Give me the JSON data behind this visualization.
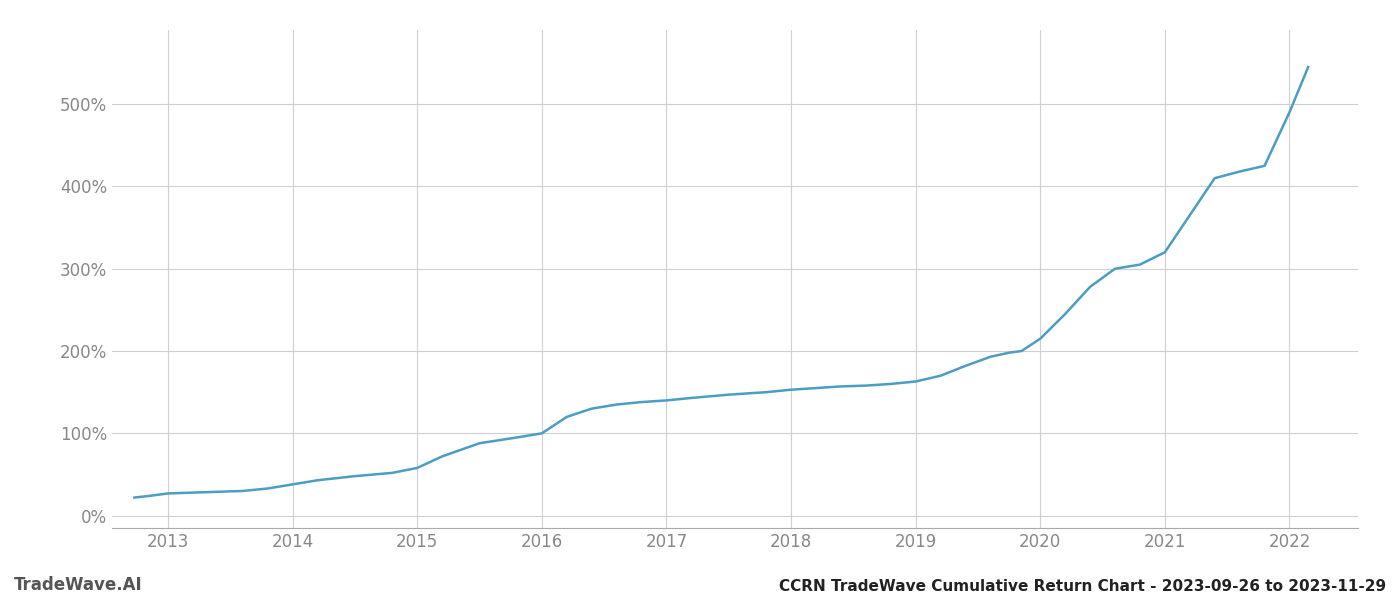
{
  "title": "CCRN TradeWave Cumulative Return Chart - 2023-09-26 to 2023-11-29",
  "watermark": "TradeWave.AI",
  "line_color": "#4a9ec4",
  "background_color": "#ffffff",
  "grid_color": "#d0d0d0",
  "x_years": [
    2013,
    2014,
    2015,
    2016,
    2017,
    2018,
    2019,
    2020,
    2021,
    2022
  ],
  "y_ticks": [
    0,
    100,
    200,
    300,
    400,
    500
  ],
  "ylim": [
    -15,
    590
  ],
  "xlim": [
    2012.55,
    2022.55
  ],
  "data_x": [
    2012.73,
    2012.85,
    2013.0,
    2013.2,
    2013.4,
    2013.6,
    2013.8,
    2014.0,
    2014.2,
    2014.5,
    2014.8,
    2015.0,
    2015.2,
    2015.5,
    2015.8,
    2016.0,
    2016.2,
    2016.4,
    2016.6,
    2016.8,
    2017.0,
    2017.2,
    2017.5,
    2017.8,
    2018.0,
    2018.2,
    2018.4,
    2018.6,
    2018.8,
    2019.0,
    2019.2,
    2019.4,
    2019.6,
    2019.75,
    2019.85,
    2020.0,
    2020.2,
    2020.4,
    2020.6,
    2020.8,
    2021.0,
    2021.2,
    2021.4,
    2021.6,
    2021.8,
    2022.0,
    2022.15
  ],
  "data_y": [
    22,
    24,
    27,
    28,
    29,
    30,
    33,
    38,
    43,
    48,
    52,
    58,
    72,
    88,
    95,
    100,
    120,
    130,
    135,
    138,
    140,
    143,
    147,
    150,
    153,
    155,
    157,
    158,
    160,
    163,
    170,
    182,
    193,
    198,
    200,
    215,
    245,
    278,
    300,
    305,
    320,
    365,
    410,
    418,
    425,
    490,
    545
  ]
}
